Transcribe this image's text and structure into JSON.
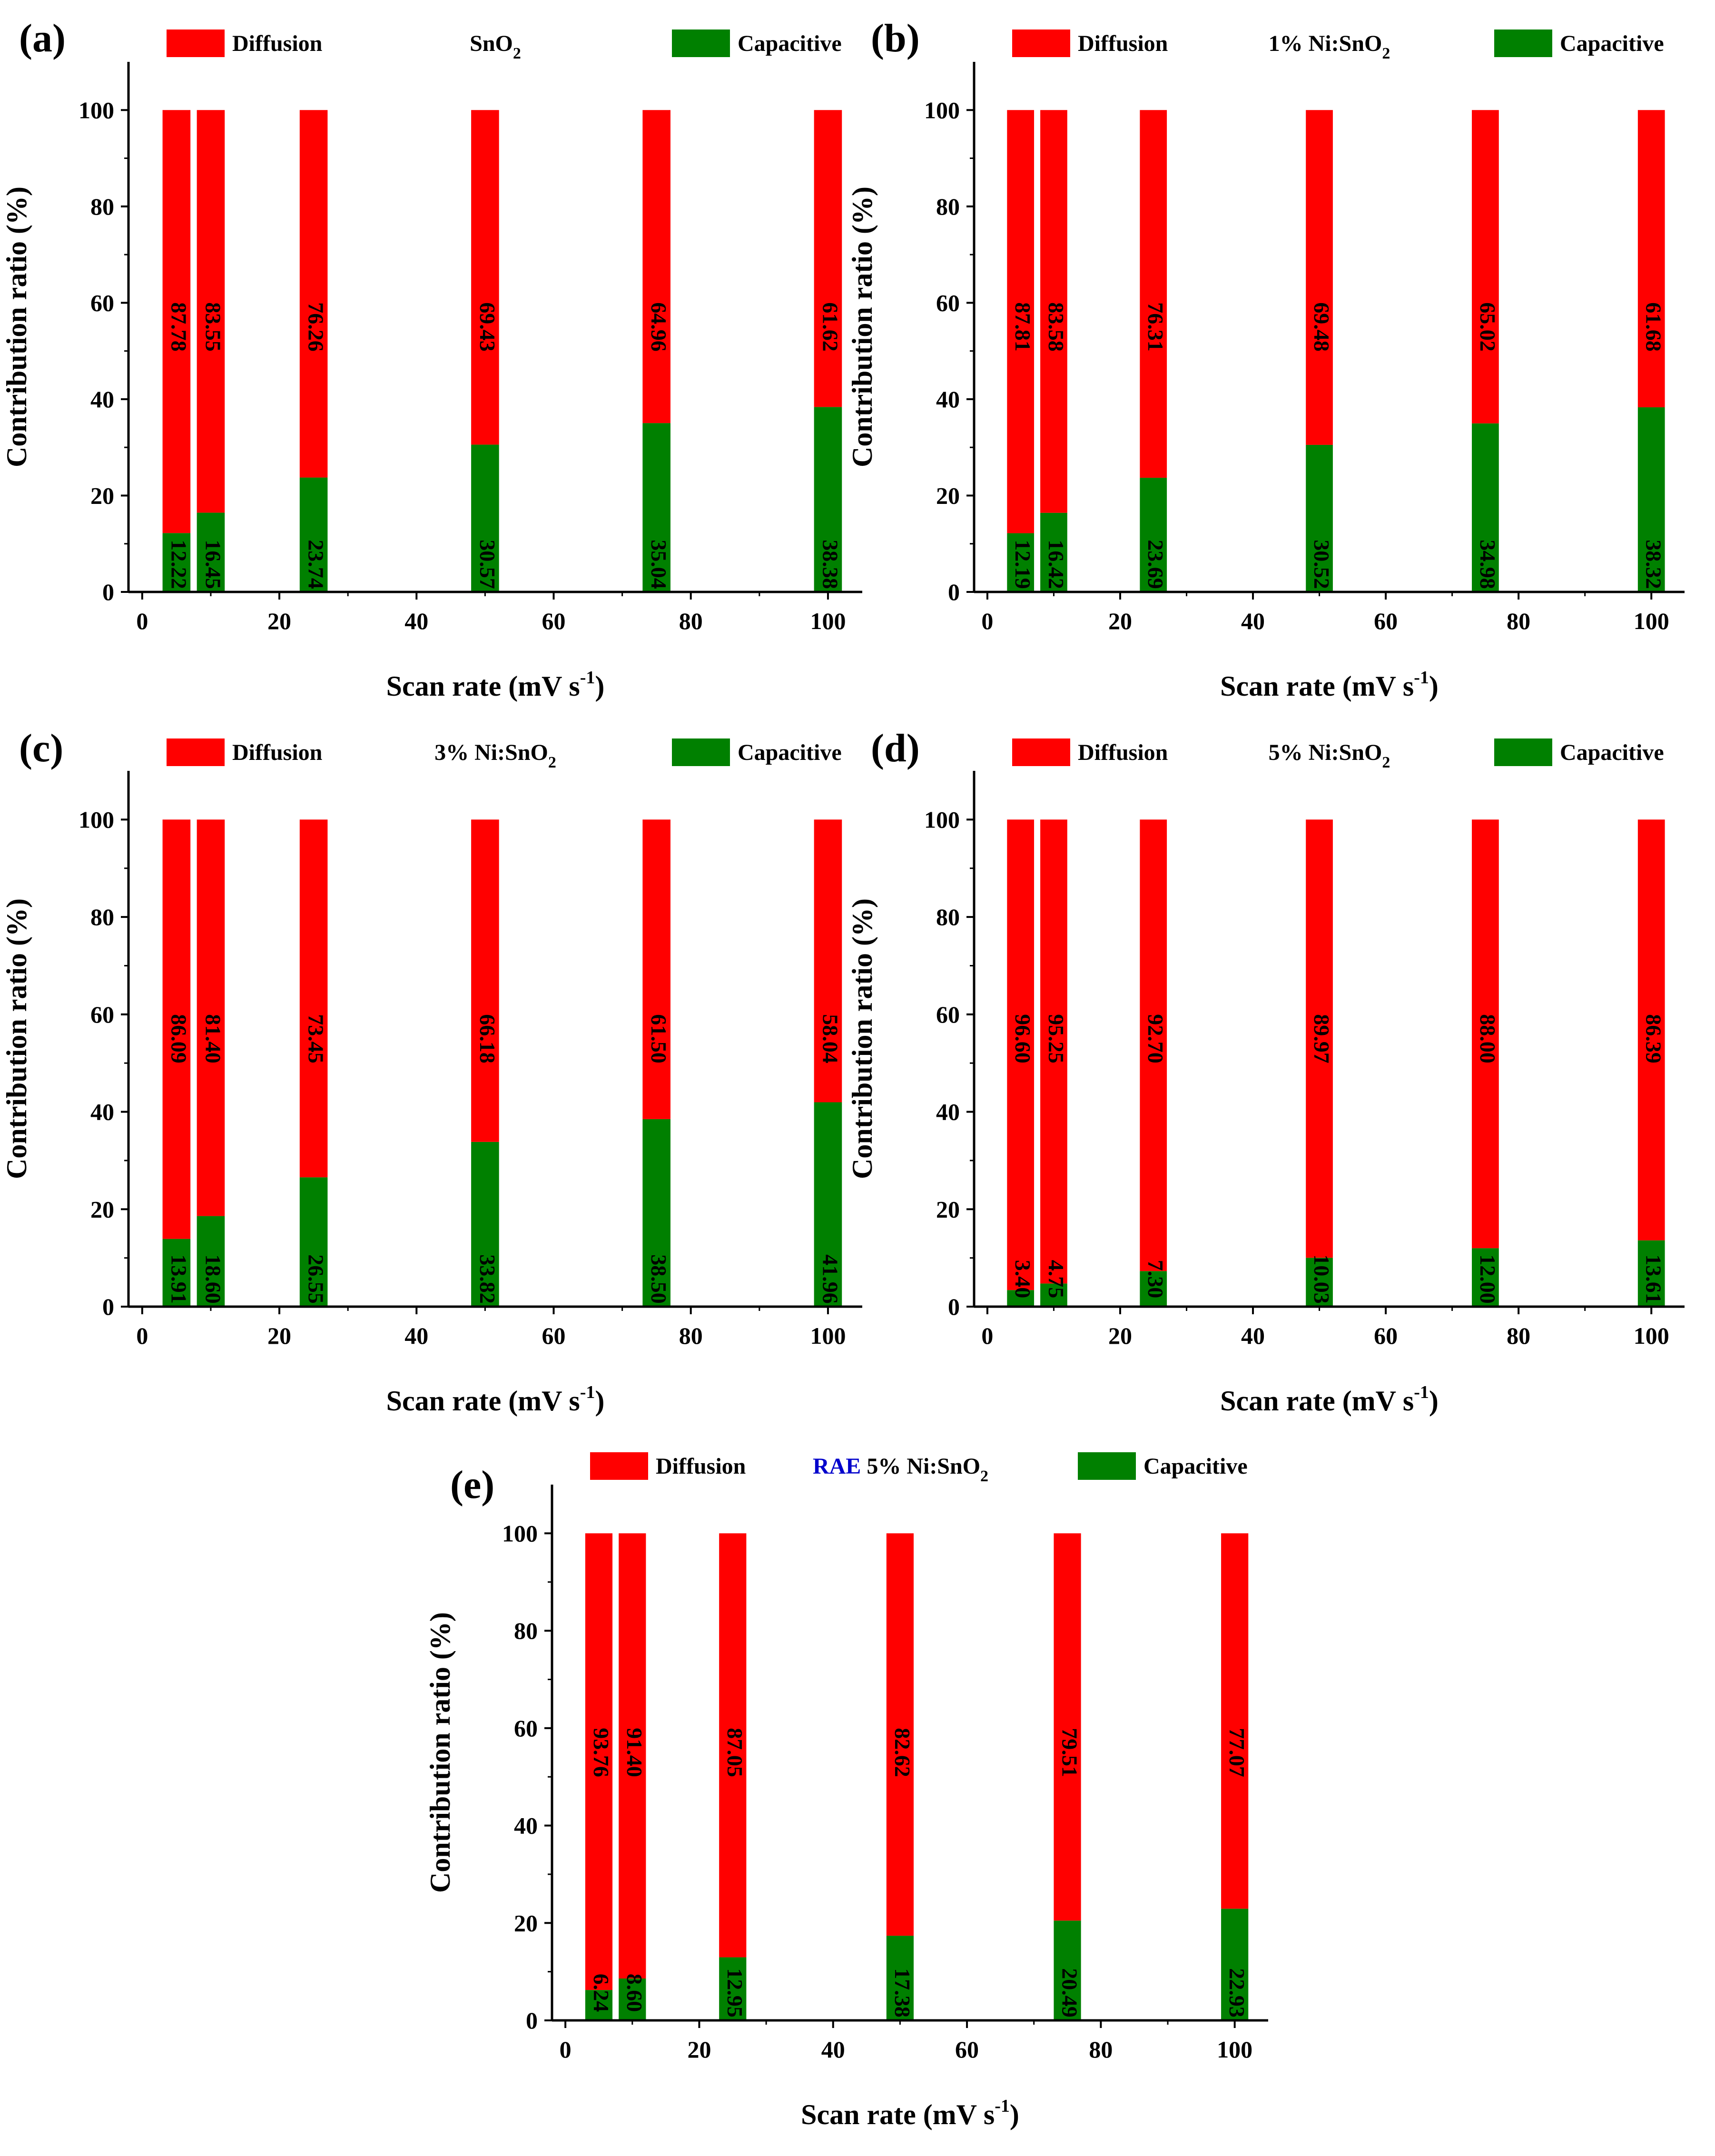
{
  "chart_data": [
    {
      "panel": "(a)",
      "type": "bar",
      "stacked": true,
      "title": "SnO",
      "title_subscript": "2",
      "title_prefix": "",
      "x": [
        5,
        10,
        25,
        50,
        75,
        100
      ],
      "series": [
        {
          "name": "Capacitive",
          "color": "#008000",
          "label_color": "#ffff00",
          "values": [
            12.22,
            16.45,
            23.74,
            30.57,
            35.04,
            38.38
          ],
          "labels": [
            "12.22",
            "16.45",
            "23.74",
            "30.57",
            "35.04",
            "38.38"
          ]
        },
        {
          "name": "Diffusion",
          "color": "#ff0000",
          "label_color": "#000000",
          "values": [
            87.78,
            83.55,
            76.26,
            69.43,
            64.96,
            61.62
          ],
          "labels": [
            "87.78",
            "83.55",
            "76.26",
            "69.43",
            "64.96",
            "61.62"
          ]
        }
      ],
      "xlabel": "Scan rate (mV s",
      "xlabel_sup": "-1",
      "xlabel_close": ")",
      "ylabel": "Contribution ratio (%)",
      "xlim": [
        -2,
        105
      ],
      "ylim": [
        0,
        110
      ],
      "xticks": [
        "0",
        "20",
        "40",
        "60",
        "80",
        "100"
      ],
      "yticks": [
        "0",
        "20",
        "40",
        "60",
        "80",
        "100"
      ],
      "legend": [
        "Diffusion",
        "Capacitive"
      ]
    },
    {
      "panel": "(b)",
      "type": "bar",
      "stacked": true,
      "title": "1% Ni:SnO",
      "title_subscript": "2",
      "title_prefix": "",
      "x": [
        5,
        10,
        25,
        50,
        75,
        100
      ],
      "series": [
        {
          "name": "Capacitive",
          "color": "#008000",
          "label_color": "#ffff00",
          "values": [
            12.19,
            16.42,
            23.69,
            30.52,
            34.98,
            38.32
          ],
          "labels": [
            "12.19",
            "16.42",
            "23.69",
            "30.52",
            "34.98",
            "38.32"
          ]
        },
        {
          "name": "Diffusion",
          "color": "#ff0000",
          "label_color": "#000000",
          "values": [
            87.81,
            83.58,
            76.31,
            69.48,
            65.02,
            61.68
          ],
          "labels": [
            "87.81",
            "83.58",
            "76.31",
            "69.48",
            "65.02",
            "61.68"
          ]
        }
      ],
      "xlabel": "Scan rate (mV s",
      "xlabel_sup": "-1",
      "xlabel_close": ")",
      "ylabel": "Contribution ratio (%)",
      "xlim": [
        -2,
        105
      ],
      "ylim": [
        0,
        110
      ],
      "xticks": [
        "0",
        "20",
        "40",
        "60",
        "80",
        "100"
      ],
      "yticks": [
        "0",
        "20",
        "40",
        "60",
        "80",
        "100"
      ],
      "legend": [
        "Diffusion",
        "Capacitive"
      ]
    },
    {
      "panel": "(c)",
      "type": "bar",
      "stacked": true,
      "title": "3% Ni:SnO",
      "title_subscript": "2",
      "title_prefix": "",
      "x": [
        5,
        10,
        25,
        50,
        75,
        100
      ],
      "series": [
        {
          "name": "Capacitive",
          "color": "#008000",
          "label_color": "#ffff00",
          "values": [
            13.91,
            18.6,
            26.55,
            33.82,
            38.5,
            41.96
          ],
          "labels": [
            "13.91",
            "18.60",
            "26.55",
            "33.82",
            "38.50",
            "41.96"
          ]
        },
        {
          "name": "Diffusion",
          "color": "#ff0000",
          "label_color": "#000000",
          "values": [
            86.09,
            81.4,
            73.45,
            66.18,
            61.5,
            58.04
          ],
          "labels": [
            "86.09",
            "81.40",
            "73.45",
            "66.18",
            "61.50",
            "58.04"
          ]
        }
      ],
      "xlabel": "Scan rate (mV s",
      "xlabel_sup": "-1",
      "xlabel_close": ")",
      "ylabel": "Contribution ratio (%)",
      "xlim": [
        -2,
        105
      ],
      "ylim": [
        0,
        110
      ],
      "xticks": [
        "0",
        "20",
        "40",
        "60",
        "80",
        "100"
      ],
      "yticks": [
        "0",
        "20",
        "40",
        "60",
        "80",
        "100"
      ],
      "legend": [
        "Diffusion",
        "Capacitive"
      ]
    },
    {
      "panel": "(d)",
      "type": "bar",
      "stacked": true,
      "title": "5% Ni:SnO",
      "title_subscript": "2",
      "title_prefix": "",
      "x": [
        5,
        10,
        25,
        50,
        75,
        100
      ],
      "series": [
        {
          "name": "Capacitive",
          "color": "#008000",
          "label_color": "#ffff00",
          "values": [
            3.4,
            4.75,
            7.3,
            10.03,
            12.0,
            13.61
          ],
          "labels": [
            "3.40",
            "4.75",
            "7.30",
            "10.03",
            "12.00",
            "13.61"
          ]
        },
        {
          "name": "Diffusion",
          "color": "#ff0000",
          "label_color": "#000000",
          "values": [
            96.6,
            95.25,
            92.7,
            89.97,
            88.0,
            86.39
          ],
          "labels": [
            "96.60",
            "95.25",
            "92.70",
            "89.97",
            "88.00",
            "86.39"
          ]
        }
      ],
      "xlabel": "Scan rate (mV s",
      "xlabel_sup": "-1",
      "xlabel_close": ")",
      "ylabel": "Contribution ratio (%)",
      "xlim": [
        -2,
        105
      ],
      "ylim": [
        0,
        110
      ],
      "xticks": [
        "0",
        "20",
        "40",
        "60",
        "80",
        "100"
      ],
      "yticks": [
        "0",
        "20",
        "40",
        "60",
        "80",
        "100"
      ],
      "legend": [
        "Diffusion",
        "Capacitive"
      ]
    },
    {
      "panel": "(e)",
      "type": "bar",
      "stacked": true,
      "title": "5% Ni:SnO",
      "title_subscript": "2",
      "title_prefix": "RAE",
      "x": [
        5,
        10,
        25,
        50,
        75,
        100
      ],
      "series": [
        {
          "name": "Capacitive",
          "color": "#008000",
          "label_color": "#ffff00",
          "values": [
            6.24,
            8.6,
            12.95,
            17.38,
            20.49,
            22.93
          ],
          "labels": [
            "6.24",
            "8.60",
            "12.95",
            "17.38",
            "20.49",
            "22.93"
          ]
        },
        {
          "name": "Diffusion",
          "color": "#ff0000",
          "label_color": "#000000",
          "values": [
            93.76,
            91.4,
            87.05,
            82.62,
            79.51,
            77.07
          ],
          "labels": [
            "93.76",
            "91.40",
            "87.05",
            "82.62",
            "79.51",
            "77.07"
          ]
        }
      ],
      "xlabel": "Scan rate (mV s",
      "xlabel_sup": "-1",
      "xlabel_close": ")",
      "ylabel": "Contribution ratio (%)",
      "xlim": [
        -2,
        105
      ],
      "ylim": [
        0,
        110
      ],
      "xticks": [
        "0",
        "20",
        "40",
        "60",
        "80",
        "100"
      ],
      "yticks": [
        "0",
        "20",
        "40",
        "60",
        "80",
        "100"
      ],
      "legend": [
        "Diffusion",
        "Capacitive"
      ]
    }
  ],
  "colors": {
    "diffusion": "#ff0000",
    "capacitive": "#008000",
    "capacitive_label": "#ffff00",
    "rae_text": "#0000cc",
    "axis": "#000000"
  }
}
